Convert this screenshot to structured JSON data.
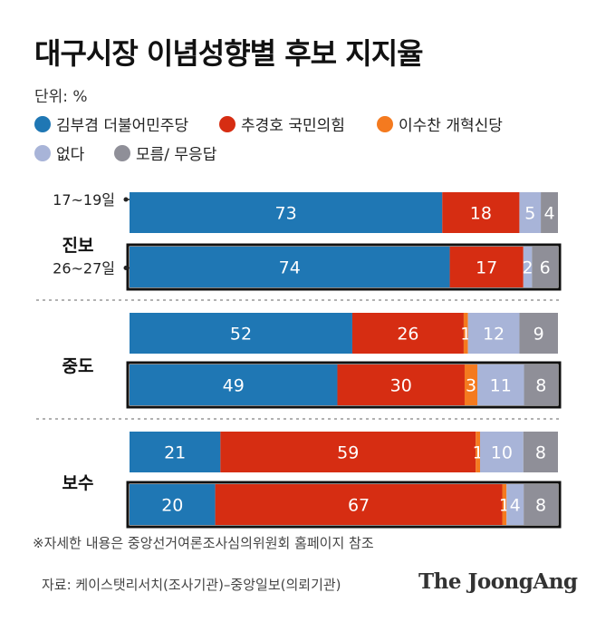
{
  "title": "대구시장 이념성향별 후보 지지율",
  "unit": "단위: %",
  "legend": [
    {
      "label": "김부겸 더불어민주당",
      "color": "#1f77b4"
    },
    {
      "label": "추경호 국민의힘",
      "color": "#d62d12"
    },
    {
      "label": "이수찬 개혁신당",
      "color": "#f47a1f"
    },
    {
      "label": "없다",
      "color": "#a8b4d8"
    },
    {
      "label": "모름/ 무응답",
      "color": "#8f8f98"
    }
  ],
  "chart_data": {
    "type": "bar",
    "orientation": "horizontal",
    "stacked": true,
    "series_names": [
      "김부겸 더불어민주당",
      "추경호 국민의힘",
      "이수찬 개혁신당",
      "없다",
      "모름/ 무응답"
    ],
    "groups": [
      {
        "label": "진보",
        "rows": [
          {
            "period": "17~19일",
            "values": [
              73,
              18,
              0,
              5,
              4
            ],
            "labels": [
              "73",
              "18",
              "",
              "5",
              "4"
            ],
            "outlined": false
          },
          {
            "period": "26~27일",
            "values": [
              74,
              17,
              0,
              2,
              6
            ],
            "labels": [
              "74",
              "17",
              "",
              "2",
              "6"
            ],
            "outlined": true
          }
        ]
      },
      {
        "label": "중도",
        "rows": [
          {
            "period": "",
            "values": [
              52,
              26,
              1,
              12,
              9
            ],
            "labels": [
              "52",
              "26",
              "1",
              "12",
              "9"
            ],
            "outlined": false
          },
          {
            "period": "",
            "values": [
              49,
              30,
              3,
              11,
              8
            ],
            "labels": [
              "49",
              "30",
              "3",
              "11",
              "8"
            ],
            "outlined": true
          }
        ]
      },
      {
        "label": "보수",
        "rows": [
          {
            "period": "",
            "values": [
              21,
              59,
              1,
              10,
              8
            ],
            "labels": [
              "21",
              "59",
              "1",
              "10",
              "8"
            ],
            "outlined": false
          },
          {
            "period": "",
            "values": [
              20,
              67,
              1,
              4,
              8
            ],
            "labels": [
              "20",
              "67",
              "1",
              "4",
              "8"
            ],
            "outlined": true
          }
        ]
      }
    ]
  },
  "footnote": "※자세한 내용은 중앙선거여론조사심의위원회 홈페이지 참조",
  "source": "자료: 케이스탯리서치(조사기관)–중앙일보(의뢰기관)",
  "logo": "The JoongAng"
}
